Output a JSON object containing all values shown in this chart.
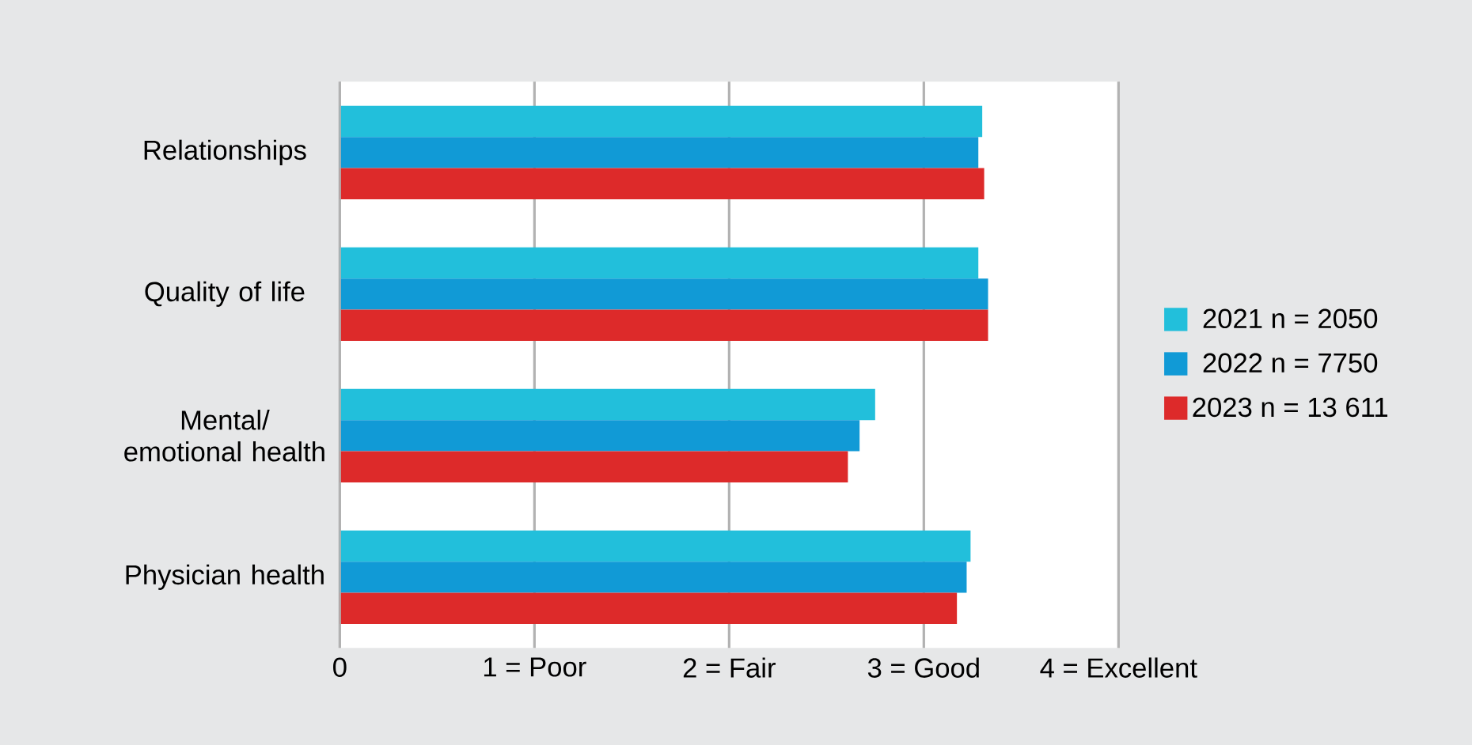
{
  "chart_data": {
    "type": "bar",
    "orientation": "horizontal",
    "categories": [
      "Relationships",
      "Quality of life",
      "Mental/ emotional health",
      "Physician health"
    ],
    "series": [
      {
        "name": "2021 n = 2050",
        "color": "#22bfdb",
        "values": [
          3.3,
          3.28,
          2.75,
          3.24
        ]
      },
      {
        "name": "2022 n = 7750",
        "color": "#119ad6",
        "values": [
          3.28,
          3.33,
          2.67,
          3.22
        ]
      },
      {
        "name": "2023 n = 13 611",
        "color": "#dd2a2a",
        "values": [
          3.31,
          3.33,
          2.61,
          3.17
        ]
      }
    ],
    "xlim": [
      0,
      4
    ],
    "xticks": [
      0,
      {
        "value": 1,
        "label": "1 = Poor"
      },
      {
        "value": 2,
        "label": "2 = Fair"
      },
      {
        "value": 3,
        "label": "3 = Good"
      },
      {
        "value": 4,
        "label": "4 = Excellent"
      }
    ],
    "grid": "x",
    "legend": "right"
  }
}
